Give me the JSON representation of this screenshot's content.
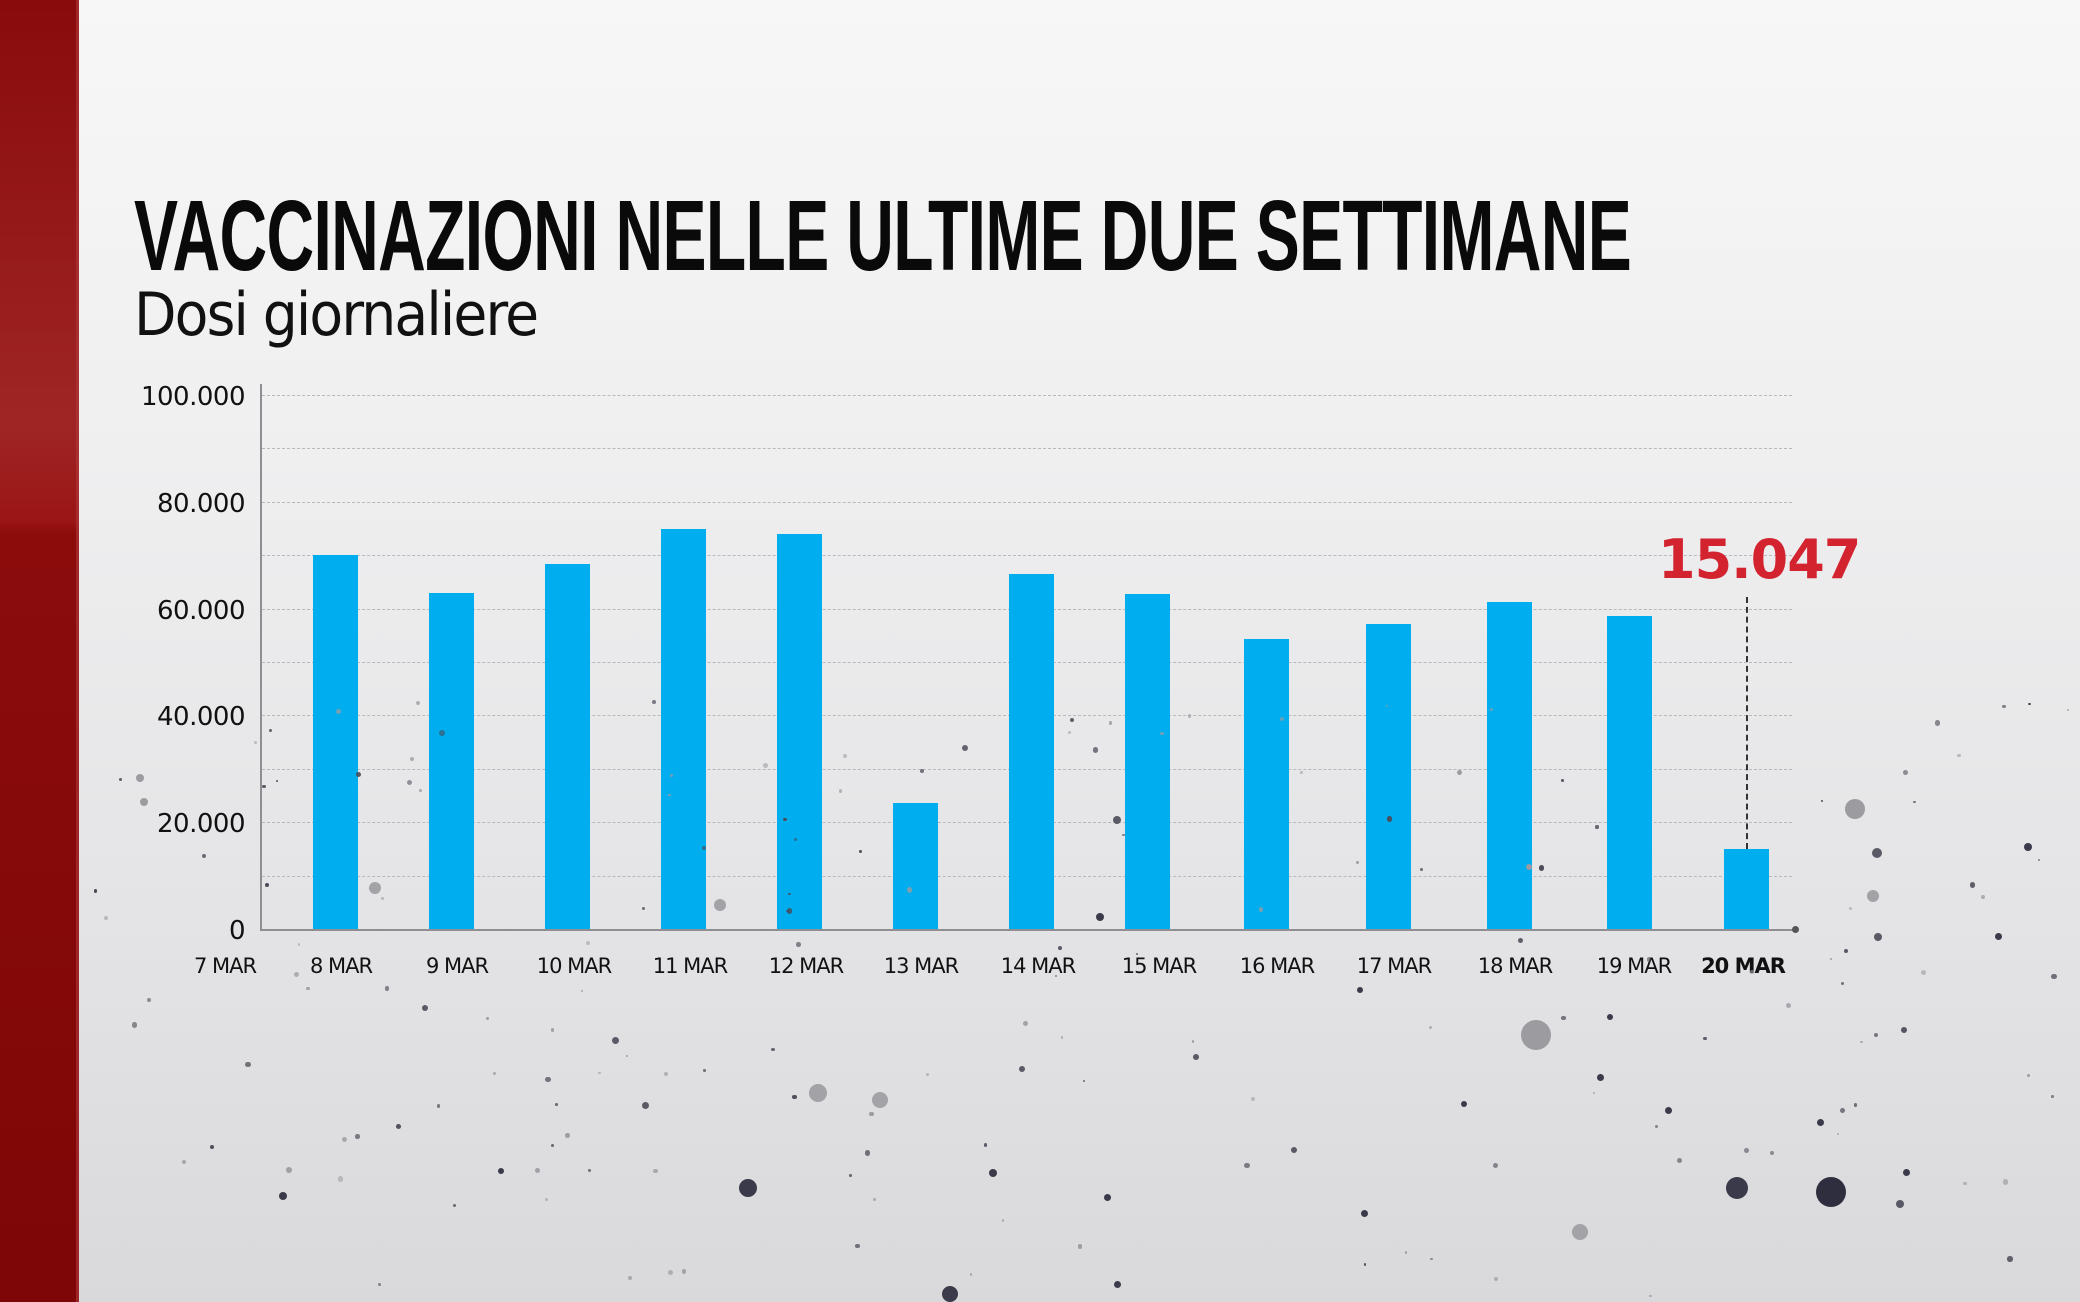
{
  "header": {
    "title": "VACCINAZIONI NELLE ULTIME DUE SETTIMANE",
    "subtitle": "Dosi giornaliere"
  },
  "colors": {
    "bar": "#00aeef",
    "highlight": "#d3232f",
    "accent_strip": "#8a0b0b"
  },
  "y_axis": {
    "ticks": [
      "100.000",
      "80.000",
      "60.000",
      "40.000",
      "20.000",
      "0"
    ]
  },
  "x_axis": {
    "labels": [
      "7 MAR",
      "8 MAR",
      "9 MAR",
      "10 MAR",
      "11 MAR",
      "12 MAR",
      "13 MAR",
      "14 MAR",
      "15 MAR",
      "16 MAR",
      "17 MAR",
      "18 MAR",
      "19 MAR",
      "20 MAR"
    ],
    "highlighted": "20 MAR"
  },
  "callout": {
    "label": "15.047",
    "category": "20 MAR"
  },
  "chart_data": {
    "type": "bar",
    "title": "VACCINAZIONI NELLE ULTIME DUE SETTIMANE",
    "subtitle": "Dosi giornaliere",
    "xlabel": "",
    "ylabel": "",
    "categories": [
      "7 MAR",
      "8 MAR",
      "9 MAR",
      "10 MAR",
      "11 MAR",
      "12 MAR",
      "13 MAR",
      "14 MAR",
      "15 MAR",
      "16 MAR",
      "17 MAR",
      "18 MAR",
      "19 MAR",
      "20 MAR"
    ],
    "values": [
      null,
      70000,
      63000,
      68300,
      75000,
      73900,
      23600,
      66500,
      62700,
      54400,
      57100,
      61200,
      58700,
      15047
    ],
    "ylim": [
      0,
      100000
    ],
    "yticks": [
      0,
      20000,
      40000,
      60000,
      80000,
      100000
    ],
    "grid": true,
    "gridline_step": 10000,
    "legend": null,
    "annotations": [
      {
        "category": "20 MAR",
        "text": "15.047",
        "color": "#d3232f"
      }
    ]
  }
}
